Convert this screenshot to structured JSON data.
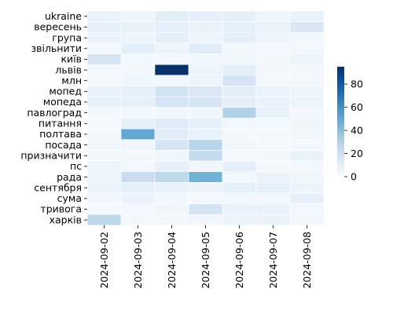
{
  "chart_data": {
    "type": "heatmap",
    "x_categories": [
      "2024-09-02",
      "2024-09-03",
      "2024-09-04",
      "2024-09-05",
      "2024-09-06",
      "2024-09-07",
      "2024-09-08"
    ],
    "y_categories": [
      "ukraine",
      "вересень",
      "група",
      "звільнити",
      "київ",
      "львів",
      "млн",
      "мопед",
      "мопеда",
      "павлоград",
      "питання",
      "полтава",
      "посада",
      "призначити",
      "пс",
      "рада",
      "сентября",
      "сума",
      "тривога",
      "харків"
    ],
    "values": [
      [
        7,
        4,
        10,
        8,
        8,
        4,
        7
      ],
      [
        8,
        7,
        8,
        6,
        8,
        6,
        14
      ],
      [
        6,
        5,
        9,
        5,
        9,
        5,
        3
      ],
      [
        3,
        10,
        5,
        11,
        3,
        3,
        3
      ],
      [
        16,
        2,
        2,
        3,
        4,
        2,
        5
      ],
      [
        3,
        3,
        95,
        5,
        10,
        3,
        3
      ],
      [
        3,
        4,
        4,
        5,
        17,
        3,
        3
      ],
      [
        7,
        8,
        18,
        14,
        10,
        7,
        5
      ],
      [
        8,
        8,
        17,
        16,
        9,
        6,
        5
      ],
      [
        2,
        2,
        3,
        3,
        30,
        7,
        2
      ],
      [
        2,
        9,
        11,
        8,
        3,
        2,
        4
      ],
      [
        2,
        50,
        11,
        7,
        2,
        2,
        4
      ],
      [
        3,
        4,
        16,
        28,
        4,
        2,
        2
      ],
      [
        2,
        3,
        4,
        24,
        2,
        2,
        6
      ],
      [
        5,
        3,
        8,
        4,
        9,
        2,
        2
      ],
      [
        5,
        22,
        26,
        46,
        3,
        6,
        4
      ],
      [
        6,
        8,
        7,
        5,
        8,
        8,
        5
      ],
      [
        3,
        6,
        3,
        2,
        3,
        3,
        8
      ],
      [
        2,
        2,
        4,
        17,
        6,
        6,
        3
      ],
      [
        26,
        2,
        2,
        3,
        5,
        6,
        2
      ]
    ],
    "vmin": 0,
    "vmax": 95,
    "colorbar_ticks": [
      0,
      20,
      40,
      60,
      80
    ],
    "colormap": "Blues",
    "grid_line_color": "#ffffff"
  }
}
